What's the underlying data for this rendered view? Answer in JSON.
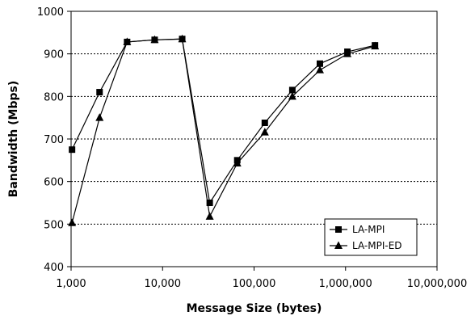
{
  "chart_data": {
    "type": "line",
    "xlabel": "Message Size (bytes)",
    "ylabel": "Bandwidth (Mbps)",
    "xscale": "log",
    "xlim": [
      1000,
      10000000
    ],
    "ylim": [
      400,
      1000
    ],
    "xticks": [
      1000,
      10000,
      100000,
      1000000,
      10000000
    ],
    "xtick_labels": [
      "1,000",
      "10,000",
      "100,000",
      "1,000,000",
      "10,000,000"
    ],
    "yticks": [
      400,
      500,
      600,
      700,
      800,
      900,
      1000
    ],
    "ytick_labels": [
      "400",
      "500",
      "600",
      "700",
      "800",
      "900",
      "1000"
    ],
    "grid": "horizontal dotted",
    "legend_position": "bottom-right",
    "series": [
      {
        "name": "LA-MPI",
        "marker": "square",
        "color": "#000000",
        "x": [
          1024,
          2048,
          4096,
          8192,
          16384,
          32768,
          65536,
          131072,
          262144,
          524288,
          1048576,
          2097152
        ],
        "y": [
          675,
          810,
          928,
          933,
          935,
          550,
          650,
          738,
          815,
          877,
          905,
          920
        ]
      },
      {
        "name": "LA-MPI-ED",
        "marker": "triangle",
        "color": "#000000",
        "x": [
          1024,
          2048,
          4096,
          8192,
          16384,
          32768,
          65536,
          131072,
          262144,
          524288,
          1048576,
          2097152
        ],
        "y": [
          503,
          750,
          928,
          933,
          935,
          518,
          643,
          716,
          800,
          862,
          900,
          918
        ]
      }
    ]
  }
}
